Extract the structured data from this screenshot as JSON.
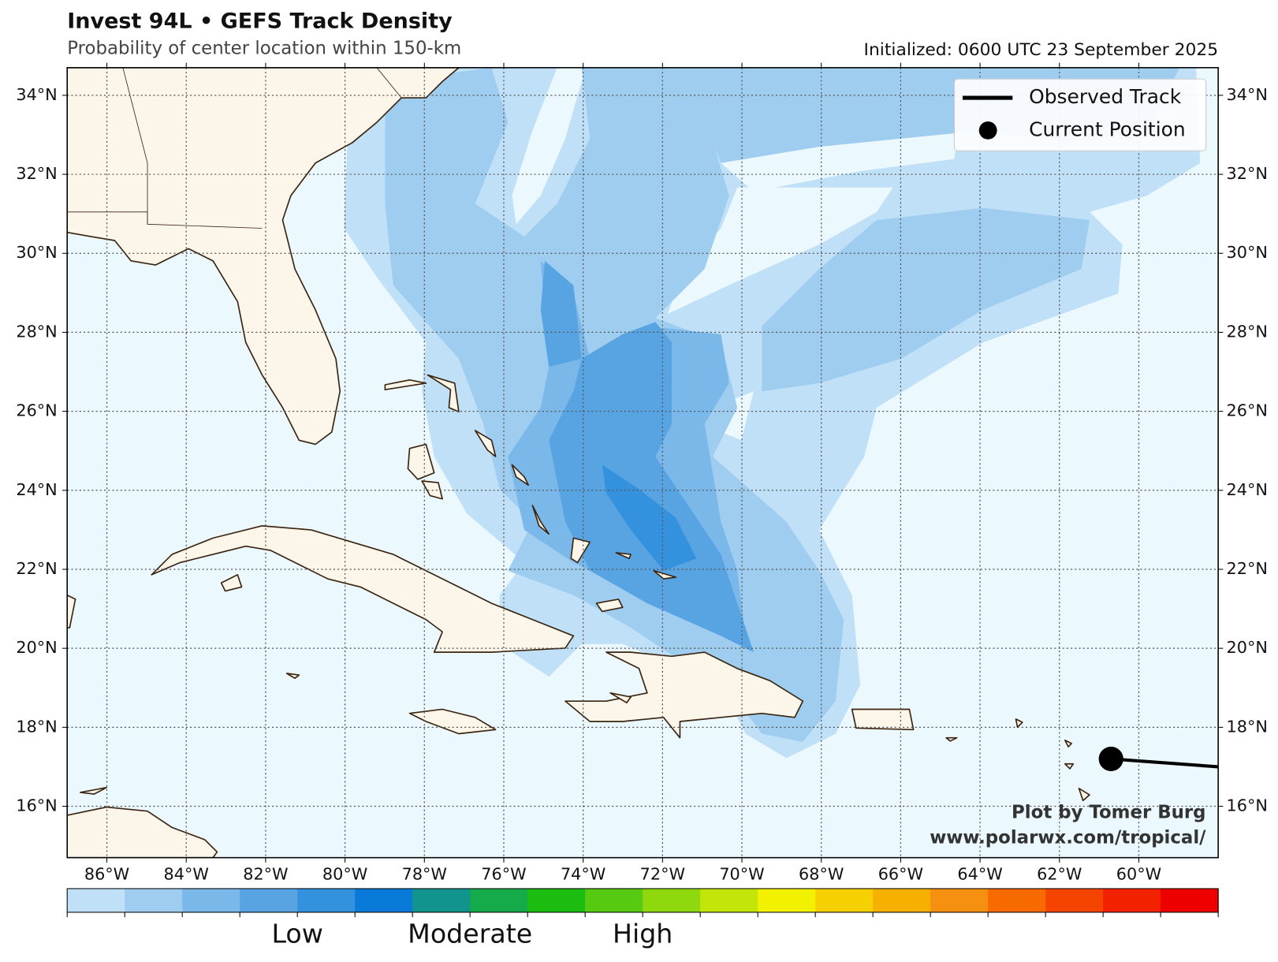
{
  "title": "Invest 94L • GEFS Track Density",
  "subtitle": "Probability of center location within 150-km",
  "initialized": "Initialized: 0600 UTC 23 September 2025",
  "map": {
    "lonlim": [
      -87,
      -58
    ],
    "latlim": [
      14.7,
      34.7
    ],
    "lon_ticks": [
      {
        "value": -86,
        "label": "86°W"
      },
      {
        "value": -84,
        "label": "84°W"
      },
      {
        "value": -82,
        "label": "82°W"
      },
      {
        "value": -80,
        "label": "80°W"
      },
      {
        "value": -78,
        "label": "78°W"
      },
      {
        "value": -76,
        "label": "76°W"
      },
      {
        "value": -74,
        "label": "74°W"
      },
      {
        "value": -72,
        "label": "72°W"
      },
      {
        "value": -70,
        "label": "70°W"
      },
      {
        "value": -68,
        "label": "68°W"
      },
      {
        "value": -66,
        "label": "66°W"
      },
      {
        "value": -64,
        "label": "64°W"
      },
      {
        "value": -62,
        "label": "62°W"
      },
      {
        "value": -60,
        "label": "60°W"
      }
    ],
    "lat_ticks": [
      {
        "value": 16,
        "label": "16°N"
      },
      {
        "value": 18,
        "label": "18°N"
      },
      {
        "value": 20,
        "label": "20°N"
      },
      {
        "value": 22,
        "label": "22°N"
      },
      {
        "value": 24,
        "label": "24°N"
      },
      {
        "value": 26,
        "label": "26°N"
      },
      {
        "value": 28,
        "label": "28°N"
      },
      {
        "value": 30,
        "label": "30°N"
      },
      {
        "value": 32,
        "label": "32°N"
      },
      {
        "value": 34,
        "label": "34°N"
      }
    ],
    "observed_track": {
      "lon": [
        -60.7,
        -58
      ],
      "lat": [
        17.2,
        17.0
      ]
    },
    "current_position": {
      "lon": -60.7,
      "lat": 17.2
    }
  },
  "legend": [
    "Observed Track",
    "Current Position"
  ],
  "colorbar": {
    "colors": [
      "#bfe0f7",
      "#9fcdf0",
      "#7ab8ea",
      "#58a4e2",
      "#3491dd",
      "#0a7ad8",
      "#12948e",
      "#15aa4a",
      "#1dbc10",
      "#55ca10",
      "#8fd80e",
      "#c3e509",
      "#f2f200",
      "#f6d000",
      "#f5b000",
      "#f59010",
      "#f66a00",
      "#f44400",
      "#f22200",
      "#ee0000"
    ],
    "labels": [
      "Low",
      "Moderate",
      "High"
    ]
  },
  "credits": [
    "Plot by Tomer Burg",
    "www.polarwx.com/tropical/"
  ]
}
